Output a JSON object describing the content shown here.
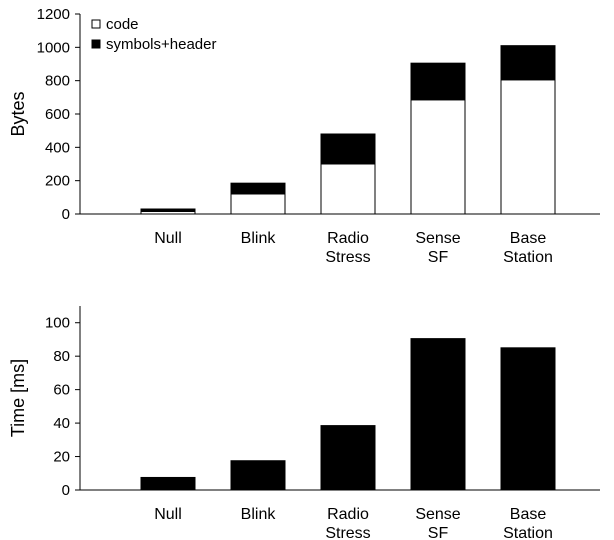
{
  "chart_data": [
    {
      "type": "bar",
      "stacked": true,
      "ylabel": "Bytes",
      "ylim": [
        0,
        1200
      ],
      "yticks": [
        0,
        200,
        400,
        600,
        800,
        1000,
        1200
      ],
      "categories": [
        [
          "Null"
        ],
        [
          "Blink"
        ],
        [
          "Radio",
          "Stress"
        ],
        [
          "Sense",
          "SF"
        ],
        [
          "Base",
          "Station"
        ]
      ],
      "legend_position": "top-left",
      "series": [
        {
          "name": "code",
          "color": "#ffffff",
          "values": [
            15,
            120,
            300,
            685,
            805
          ]
        },
        {
          "name": "symbols+header",
          "color": "#000000",
          "values": [
            15,
            65,
            180,
            220,
            205
          ]
        }
      ]
    },
    {
      "type": "bar",
      "ylabel": "Time [ms]",
      "ylim": [
        0,
        110
      ],
      "yticks": [
        0,
        20,
        40,
        60,
        80,
        100
      ],
      "categories": [
        [
          "Null"
        ],
        [
          "Blink"
        ],
        [
          "Radio",
          "Stress"
        ],
        [
          "Sense",
          "SF"
        ],
        [
          "Base",
          "Station"
        ]
      ],
      "series": [
        {
          "color": "#000000",
          "values": [
            7.5,
            17.5,
            38.5,
            90.5,
            85
          ]
        }
      ]
    }
  ]
}
